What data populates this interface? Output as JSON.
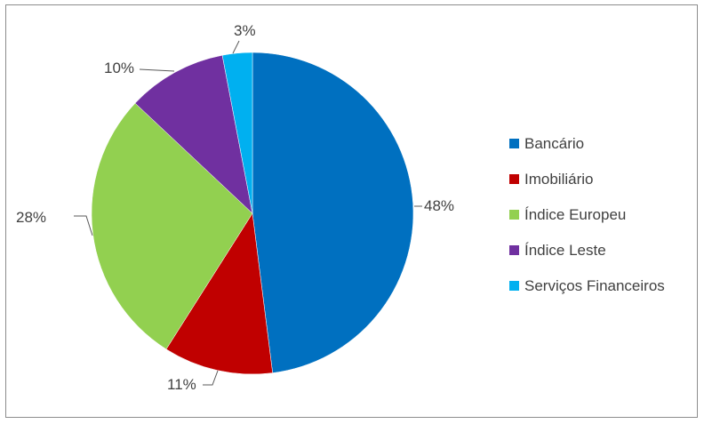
{
  "chart_data": {
    "type": "pie",
    "title": "",
    "legend_position": "right",
    "start_angle_deg": 0,
    "direction": "clockwise",
    "slices": [
      {
        "category": "Bancário",
        "value": 48,
        "label": "48%",
        "color": "#0070C0"
      },
      {
        "category": "Imobiliário",
        "value": 11,
        "label": "11%",
        "color": "#C00000"
      },
      {
        "category": "Índice Europeu",
        "value": 28,
        "label": "28%",
        "color": "#92D050"
      },
      {
        "category": "Índice Leste",
        "value": 10,
        "label": "10%",
        "color": "#7030A0"
      },
      {
        "category": "Serviços Financeiros",
        "value": 3,
        "label": "3%",
        "color": "#00B0F0"
      }
    ]
  }
}
